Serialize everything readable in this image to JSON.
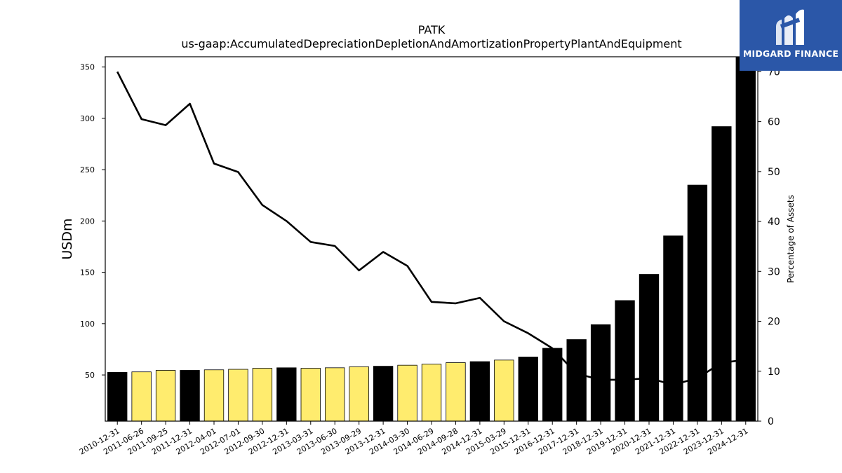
{
  "chart_data": {
    "type": "bar",
    "title": "PATK",
    "subtitle": "us-gaap:AccumulatedDepreciationDepletionAndAmortizationPropertyPlantAndEquipment",
    "ylabel": "USDm",
    "y2label": "Percentage of Assets",
    "ylim": [
      5,
      360
    ],
    "y2lim": [
      0,
      73
    ],
    "yticks": [
      50,
      100,
      150,
      200,
      250,
      300,
      350
    ],
    "y2ticks": [
      0,
      10,
      20,
      30,
      40,
      50,
      60,
      70
    ],
    "categories": [
      "2010-12-31",
      "2011-06-26",
      "2011-09-25",
      "2011-12-31",
      "2012-04-01",
      "2012-07-01",
      "2012-09-30",
      "2012-12-31",
      "2013-03-31",
      "2013-06-30",
      "2013-09-29",
      "2013-12-31",
      "2014-03-30",
      "2014-06-29",
      "2014-09-28",
      "2014-12-31",
      "2015-03-29",
      "2015-12-31",
      "2016-12-31",
      "2017-12-31",
      "2018-12-31",
      "2019-12-31",
      "2020-12-31",
      "2021-12-31",
      "2022-12-31",
      "2023-12-31",
      "2024-12-31"
    ],
    "series": [
      {
        "type": "bar",
        "axis": "left",
        "values": [
          52.5,
          53.0,
          54.5,
          54.5,
          55.0,
          55.5,
          56.5,
          57.0,
          56.5,
          57.0,
          58.0,
          58.5,
          59.5,
          60.5,
          62.0,
          63.0,
          64.5,
          67.5,
          76.0,
          84.5,
          99.0,
          122.5,
          148.0,
          185.5,
          235.0,
          292.0,
          360.0
        ],
        "colors": [
          "#000000",
          "#ffec6e",
          "#ffec6e",
          "#000000",
          "#ffec6e",
          "#ffec6e",
          "#ffec6e",
          "#000000",
          "#ffec6e",
          "#ffec6e",
          "#ffec6e",
          "#000000",
          "#ffec6e",
          "#ffec6e",
          "#ffec6e",
          "#000000",
          "#ffec6e",
          "#000000",
          "#000000",
          "#000000",
          "#000000",
          "#000000",
          "#000000",
          "#000000",
          "#000000",
          "#000000",
          "#000000"
        ]
      },
      {
        "type": "line",
        "axis": "right",
        "color": "#000000",
        "values": [
          70.0,
          60.5,
          59.3,
          63.6,
          51.6,
          49.9,
          43.3,
          40.1,
          35.9,
          35.1,
          30.2,
          33.9,
          31.1,
          23.9,
          23.6,
          24.7,
          20.0,
          17.6,
          14.6,
          9.5,
          8.3,
          8.3,
          8.6,
          7.3,
          8.6,
          11.7,
          12.3
        ]
      }
    ],
    "grid": false,
    "legend": "none"
  },
  "logo": {
    "text": "MIDGARD FINANCE"
  }
}
